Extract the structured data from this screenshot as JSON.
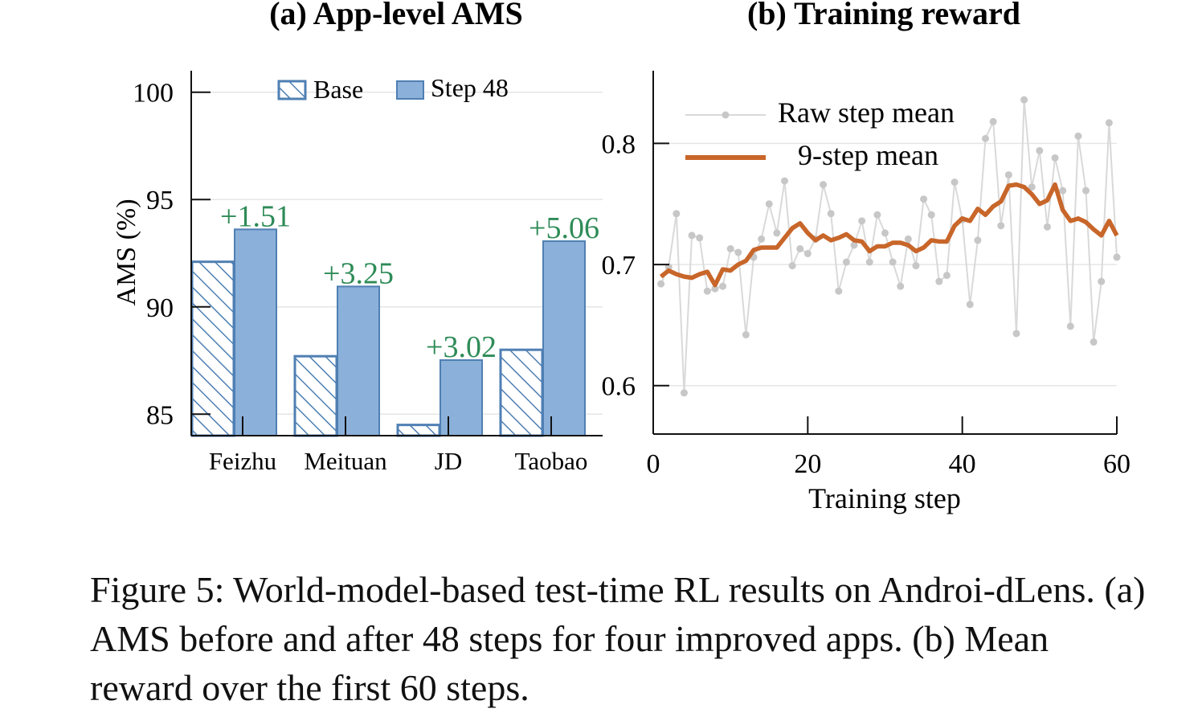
{
  "figure": {
    "caption": "Figure 5: World-model-based test-time RL results on Androi-dLens. (a) AMS before and after 48 steps for four improved apps. (b) Mean reward over the first 60 steps."
  },
  "colors": {
    "bar_fill": "#8bb0d9",
    "bar_edge": "#4f7fb3",
    "delta_text": "#2e8b57",
    "raw_line": "#d9d9d9",
    "raw_marker": "#c7c7c7",
    "smooth_line": "#c8662a",
    "grid": "#e6e6e6",
    "axis": "#111111"
  },
  "chart_data": [
    {
      "type": "bar",
      "title": "(a) App-level AMS",
      "ylabel": "AMS (%)",
      "xlabel": "",
      "categories": [
        "Feizhu",
        "Meituan",
        "JD",
        "Taobao"
      ],
      "series": [
        {
          "name": "Base",
          "values": [
            92.1,
            87.7,
            84.5,
            88.0
          ],
          "pattern": "hatch"
        },
        {
          "name": "Step 48",
          "values": [
            93.61,
            90.95,
            87.52,
            93.06
          ],
          "pattern": "solid"
        }
      ],
      "annotations": [
        "+1.51",
        "+3.25",
        "+3.02",
        "+5.06"
      ],
      "ylim": [
        84,
        101
      ],
      "yticks": [
        85,
        90,
        95,
        100
      ],
      "grid": true,
      "legend": "top-center"
    },
    {
      "type": "line",
      "title": "(b) Training reward",
      "xlabel": "Training step",
      "ylabel": "",
      "xlim": [
        0,
        60
      ],
      "ylim": [
        0.56,
        0.86
      ],
      "xticks": [
        0,
        20,
        40,
        60
      ],
      "yticks": [
        0.6,
        0.7,
        0.8
      ],
      "grid": true,
      "legend": "top-left",
      "series": [
        {
          "name": "Raw step mean",
          "x": [
            1,
            2,
            3,
            4,
            5,
            6,
            7,
            8,
            9,
            10,
            11,
            12,
            13,
            14,
            15,
            16,
            17,
            18,
            19,
            20,
            21,
            22,
            23,
            24,
            25,
            26,
            27,
            28,
            29,
            30,
            31,
            32,
            33,
            34,
            35,
            36,
            37,
            38,
            39,
            40,
            41,
            42,
            43,
            44,
            45,
            46,
            47,
            48,
            49,
            50,
            51,
            52,
            53,
            54,
            55,
            56,
            57,
            58,
            59,
            60
          ],
          "y": [
            0.684,
            0.698,
            0.742,
            0.594,
            0.724,
            0.722,
            0.678,
            0.68,
            0.682,
            0.713,
            0.71,
            0.642,
            0.706,
            0.721,
            0.75,
            0.726,
            0.769,
            0.699,
            0.713,
            0.709,
            0.721,
            0.766,
            0.742,
            0.678,
            0.702,
            0.716,
            0.736,
            0.702,
            0.741,
            0.726,
            0.702,
            0.682,
            0.721,
            0.699,
            0.754,
            0.741,
            0.686,
            0.691,
            0.768,
            0.737,
            0.667,
            0.72,
            0.804,
            0.818,
            0.732,
            0.774,
            0.643,
            0.836,
            0.764,
            0.794,
            0.731,
            0.788,
            0.761,
            0.649,
            0.806,
            0.761,
            0.636,
            0.686,
            0.817,
            0.706
          ]
        },
        {
          "name": "9-step mean",
          "x": [
            1,
            2,
            3,
            4,
            5,
            6,
            7,
            8,
            9,
            10,
            11,
            12,
            13,
            14,
            15,
            16,
            17,
            18,
            19,
            20,
            21,
            22,
            23,
            24,
            25,
            26,
            27,
            28,
            29,
            30,
            31,
            32,
            33,
            34,
            35,
            36,
            37,
            38,
            39,
            40,
            41,
            42,
            43,
            44,
            45,
            46,
            47,
            48,
            49,
            50,
            51,
            52,
            53,
            54,
            55,
            56,
            57,
            58,
            59,
            60
          ],
          "y": [
            0.69,
            0.695,
            0.692,
            0.69,
            0.689,
            0.692,
            0.694,
            0.683,
            0.696,
            0.695,
            0.7,
            0.703,
            0.712,
            0.714,
            0.714,
            0.714,
            0.722,
            0.73,
            0.734,
            0.726,
            0.72,
            0.724,
            0.72,
            0.722,
            0.725,
            0.72,
            0.719,
            0.711,
            0.715,
            0.715,
            0.718,
            0.718,
            0.716,
            0.711,
            0.714,
            0.72,
            0.719,
            0.719,
            0.732,
            0.738,
            0.736,
            0.746,
            0.741,
            0.748,
            0.752,
            0.765,
            0.766,
            0.764,
            0.758,
            0.75,
            0.753,
            0.766,
            0.745,
            0.736,
            0.738,
            0.735,
            0.729,
            0.724,
            0.736,
            0.724
          ]
        }
      ]
    }
  ]
}
